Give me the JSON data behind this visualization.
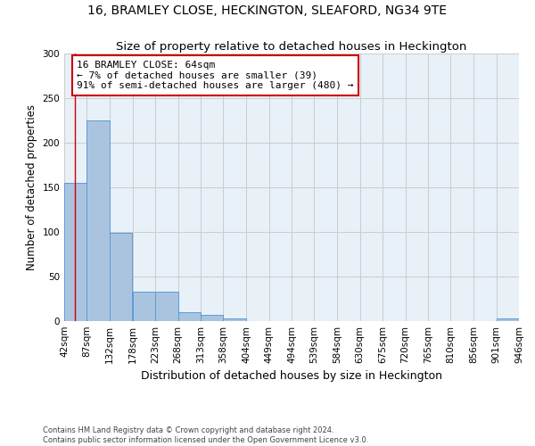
{
  "title": "16, BRAMLEY CLOSE, HECKINGTON, SLEAFORD, NG34 9TE",
  "subtitle": "Size of property relative to detached houses in Heckington",
  "xlabel": "Distribution of detached houses by size in Heckington",
  "ylabel": "Number of detached properties",
  "bin_edges": [
    42,
    87,
    132,
    178,
    223,
    268,
    313,
    358,
    404,
    449,
    494,
    539,
    584,
    630,
    675,
    720,
    765,
    810,
    856,
    901,
    946
  ],
  "bar_heights": [
    155,
    225,
    99,
    33,
    33,
    10,
    7,
    3,
    0,
    0,
    0,
    0,
    0,
    0,
    0,
    0,
    0,
    0,
    0,
    3
  ],
  "bar_color": "#aac4e0",
  "bar_edge_color": "#5b9bd5",
  "grid_color": "#cccccc",
  "background_color": "#e8f0f8",
  "property_size": 64,
  "annotation_text": "16 BRAMLEY CLOSE: 64sqm\n← 7% of detached houses are smaller (39)\n91% of semi-detached houses are larger (480) →",
  "annotation_box_color": "#ffffff",
  "annotation_border_color": "#cc0000",
  "red_line_color": "#cc0000",
  "ylim": [
    0,
    300
  ],
  "yticks": [
    0,
    50,
    100,
    150,
    200,
    250,
    300
  ],
  "footnote": "Contains HM Land Registry data © Crown copyright and database right 2024.\nContains public sector information licensed under the Open Government Licence v3.0.",
  "title_fontsize": 10,
  "subtitle_fontsize": 9.5,
  "xlabel_fontsize": 9,
  "ylabel_fontsize": 8.5,
  "tick_fontsize": 7.5,
  "annotation_fontsize": 8,
  "footnote_fontsize": 6
}
